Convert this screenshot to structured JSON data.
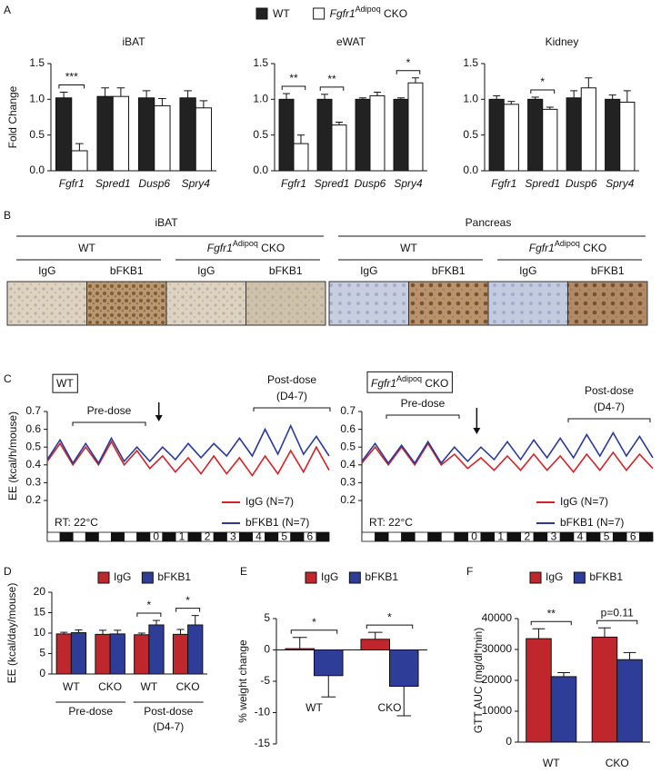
{
  "panel_labels": [
    "A",
    "B",
    "C",
    "D",
    "E",
    "F"
  ],
  "legend_A": [
    {
      "name": [
        "WT"
      ],
      "color": "#222222"
    },
    {
      "name": [
        "Fgfr1",
        "Adipoq",
        " CKO"
      ],
      "color": "#ffffff"
    }
  ],
  "images": {
    "groups": [
      {
        "title": "iBAT",
        "subgroups": [
          {
            "title": [
              "WT"
            ],
            "labels": [
              "IgG",
              "bFKB1"
            ]
          },
          {
            "title": [
              "Fgfr1",
              "Adipoq",
              " CKO"
            ],
            "labels": [
              "IgG",
              "bFKB1"
            ]
          }
        ]
      },
      {
        "title": "Pancreas",
        "subgroups": [
          {
            "title": [
              "WT"
            ],
            "labels": [
              "IgG",
              "bFKB1"
            ]
          },
          {
            "title": [
              "Fgfr1",
              "Adipoq",
              " CKO"
            ],
            "labels": [
              "IgG",
              "bFKB1"
            ]
          }
        ]
      }
    ]
  },
  "chart_data": [
    {
      "type": "bar",
      "title": "iBAT",
      "ylabel": "Fold Change",
      "italic_categories": true,
      "categories": [
        "Fgfr1",
        "Spred1",
        "Dusp6",
        "Spry4"
      ],
      "series": [
        {
          "color": "#222222",
          "values": [
            1.02,
            1.04,
            1.02,
            1.02
          ],
          "errors": [
            0.08,
            0.12,
            0.1,
            0.1
          ]
        },
        {
          "color": "#ffffff",
          "values": [
            0.28,
            1.04,
            0.91,
            0.88
          ],
          "errors": [
            0.1,
            0.12,
            0.1,
            0.1
          ]
        }
      ],
      "ylim": [
        0,
        1.5
      ],
      "yticks": [
        {
          "value": 0,
          "label": "0.0"
        },
        0.5,
        {
          "value": 1,
          "label": "1.0"
        },
        1.5
      ],
      "annotations": [
        {
          "text": "***",
          "index": 0
        }
      ]
    },
    {
      "type": "bar",
      "title": "eWAT",
      "italic_categories": true,
      "categories": [
        "Fgfr1",
        "Spred1",
        "Dusp6",
        "Spry4"
      ],
      "series": [
        {
          "color": "#222222",
          "values": [
            1.0,
            1.0,
            1.0,
            1.0
          ],
          "errors": [
            0.08,
            0.07,
            0.02,
            0.02
          ]
        },
        {
          "color": "#ffffff",
          "values": [
            0.38,
            0.64,
            1.05,
            1.23
          ],
          "errors": [
            0.12,
            0.04,
            0.05,
            0.07
          ]
        }
      ],
      "ylim": [
        0,
        1.5
      ],
      "yticks": [
        {
          "value": 0,
          "label": "0.0"
        },
        0.5,
        {
          "value": 1,
          "label": "1.0"
        },
        1.5
      ],
      "annotations": [
        {
          "text": "**",
          "index": 0
        },
        {
          "text": "**",
          "index": 1
        },
        {
          "text": "*",
          "index": 3
        }
      ]
    },
    {
      "type": "bar",
      "title": "Kidney",
      "italic_categories": true,
      "categories": [
        "Fgfr1",
        "Spred1",
        "Dusp6",
        "Spry4"
      ],
      "series": [
        {
          "color": "#222222",
          "values": [
            1.0,
            1.0,
            1.02,
            1.0
          ],
          "errors": [
            0.05,
            0.03,
            0.1,
            0.06
          ]
        },
        {
          "color": "#ffffff",
          "values": [
            0.93,
            0.86,
            1.16,
            0.96
          ],
          "errors": [
            0.04,
            0.03,
            0.14,
            0.16
          ]
        }
      ],
      "ylim": [
        0,
        1.5
      ],
      "yticks": [
        {
          "value": 0,
          "label": "0.0"
        },
        0.5,
        {
          "value": 1,
          "label": "1.0"
        },
        1.5
      ],
      "annotations": [
        {
          "text": "*",
          "index": 1
        }
      ]
    },
    {
      "type": "line",
      "box_label": [
        "WT"
      ],
      "ylabel": "EE (kcal/h/mouse)",
      "x": [
        -4,
        -3.5,
        -3,
        -2.5,
        -2,
        -1.5,
        -1,
        -0.5,
        0,
        0.5,
        1,
        1.5,
        2,
        2.5,
        3,
        3.5,
        4,
        4.5,
        5,
        5.5,
        6,
        6.5,
        7
      ],
      "xlim": [
        -4,
        7
      ],
      "xticks": [
        0,
        1,
        2,
        3,
        4,
        5,
        6
      ],
      "ylim": [
        0.2,
        0.7
      ],
      "yticks": [
        0.2,
        0.3,
        0.4,
        0.5,
        0.6,
        0.7
      ],
      "series": [
        {
          "name": "IgG (N=7)",
          "color": "#d0242b",
          "values": [
            0.42,
            0.52,
            0.4,
            0.5,
            0.4,
            0.53,
            0.4,
            0.48,
            0.38,
            0.45,
            0.36,
            0.44,
            0.35,
            0.45,
            0.35,
            0.44,
            0.34,
            0.45,
            0.35,
            0.48,
            0.36,
            0.5,
            0.37
          ]
        },
        {
          "name": "bFKB1 (N=7)",
          "color": "#2b3a9a",
          "values": [
            0.43,
            0.54,
            0.41,
            0.52,
            0.41,
            0.55,
            0.42,
            0.5,
            0.42,
            0.5,
            0.43,
            0.52,
            0.44,
            0.52,
            0.45,
            0.55,
            0.45,
            0.6,
            0.46,
            0.62,
            0.46,
            0.56,
            0.45
          ]
        }
      ],
      "annotations": [
        "Pre-dose",
        "Post-dose",
        "(D4-7)",
        "RT: 22°C"
      ]
    },
    {
      "type": "line",
      "box_label": [
        "Fgfr1",
        "Adipoq",
        " CKO"
      ],
      "x": [
        -4,
        -3.5,
        -3,
        -2.5,
        -2,
        -1.5,
        -1,
        -0.5,
        0,
        0.5,
        1,
        1.5,
        2,
        2.5,
        3,
        3.5,
        4,
        4.5,
        5,
        5.5,
        6,
        6.5,
        7
      ],
      "xlim": [
        -4,
        7
      ],
      "xticks": [
        0,
        1,
        2,
        3,
        4,
        5,
        6
      ],
      "ylim": [
        0.2,
        0.7
      ],
      "yticks": [
        0.2,
        0.3,
        0.4,
        0.5,
        0.6,
        0.7
      ],
      "series": [
        {
          "name": "IgG (N=7)",
          "color": "#d0242b",
          "values": [
            0.41,
            0.5,
            0.4,
            0.5,
            0.4,
            0.52,
            0.4,
            0.46,
            0.38,
            0.44,
            0.37,
            0.45,
            0.37,
            0.46,
            0.37,
            0.45,
            0.36,
            0.46,
            0.37,
            0.47,
            0.37,
            0.46,
            0.38
          ]
        },
        {
          "name": "bFKB1 (N=7)",
          "color": "#2b3a9a",
          "values": [
            0.42,
            0.52,
            0.41,
            0.51,
            0.41,
            0.53,
            0.41,
            0.5,
            0.42,
            0.5,
            0.43,
            0.53,
            0.43,
            0.54,
            0.44,
            0.55,
            0.44,
            0.57,
            0.45,
            0.58,
            0.45,
            0.56,
            0.44
          ]
        }
      ],
      "annotations": [
        "Pre-dose",
        "Post-dose",
        "(D4-7)",
        "RT: 22°C"
      ]
    },
    {
      "type": "bar",
      "ylabel": "EE (kcal/day/mouse)",
      "categories": [
        "WT",
        "CKO",
        "WT",
        "CKO"
      ],
      "group_labels": [
        [
          "Pre-dose"
        ],
        [
          "Post-dose",
          "(D4-7)"
        ]
      ],
      "series": [
        {
          "name": "IgG",
          "color": "#c0272d",
          "values": [
            9.8,
            9.7,
            9.6,
            9.7
          ],
          "errors": [
            0.4,
            1.0,
            0.4,
            1.2
          ]
        },
        {
          "name": "bFKB1",
          "color": "#2e3d98",
          "values": [
            10.1,
            9.8,
            12.0,
            12.0
          ],
          "errors": [
            0.7,
            0.9,
            1.1,
            2.3
          ]
        }
      ],
      "ylim": [
        0,
        20
      ],
      "yticks": [
        0,
        5,
        10,
        15,
        20
      ],
      "annotations": [
        {
          "text": "*",
          "index": 2
        },
        {
          "text": "*",
          "index": 3
        }
      ]
    },
    {
      "type": "bar",
      "ylabel": "% weight change",
      "categories": [
        "WT",
        "CKO"
      ],
      "series": [
        {
          "name": "IgG",
          "color": "#c0272d",
          "values": [
            0.2,
            1.7
          ],
          "errors": [
            1.8,
            1.1
          ]
        },
        {
          "name": "bFKB1",
          "color": "#2e3d98",
          "values": [
            -4.1,
            -5.8
          ],
          "errors": [
            3.4,
            4.7
          ]
        }
      ],
      "ylim": [
        -15,
        5
      ],
      "yticks": [
        5,
        0,
        -5,
        -10,
        -15
      ],
      "annotations": [
        {
          "text": "*",
          "index": 0
        },
        {
          "text": "*",
          "index": 1
        }
      ]
    },
    {
      "type": "bar",
      "ylabel": "GTT AUC (mg/dl*min)",
      "categories": [
        "WT",
        "CKO"
      ],
      "series": [
        {
          "name": "IgG",
          "color": "#c0272d",
          "values": [
            33500,
            34000
          ],
          "errors": [
            3200,
            3000
          ]
        },
        {
          "name": "bFKB1",
          "color": "#2e3d98",
          "values": [
            21200,
            26700
          ],
          "errors": [
            1300,
            2300
          ]
        }
      ],
      "ylim": [
        0,
        40000
      ],
      "yticks": [
        0,
        10000,
        20000,
        30000,
        40000
      ],
      "annotations": [
        {
          "text": "**",
          "index": 0
        },
        {
          "text": "p=0.11",
          "index": 1
        }
      ]
    }
  ]
}
